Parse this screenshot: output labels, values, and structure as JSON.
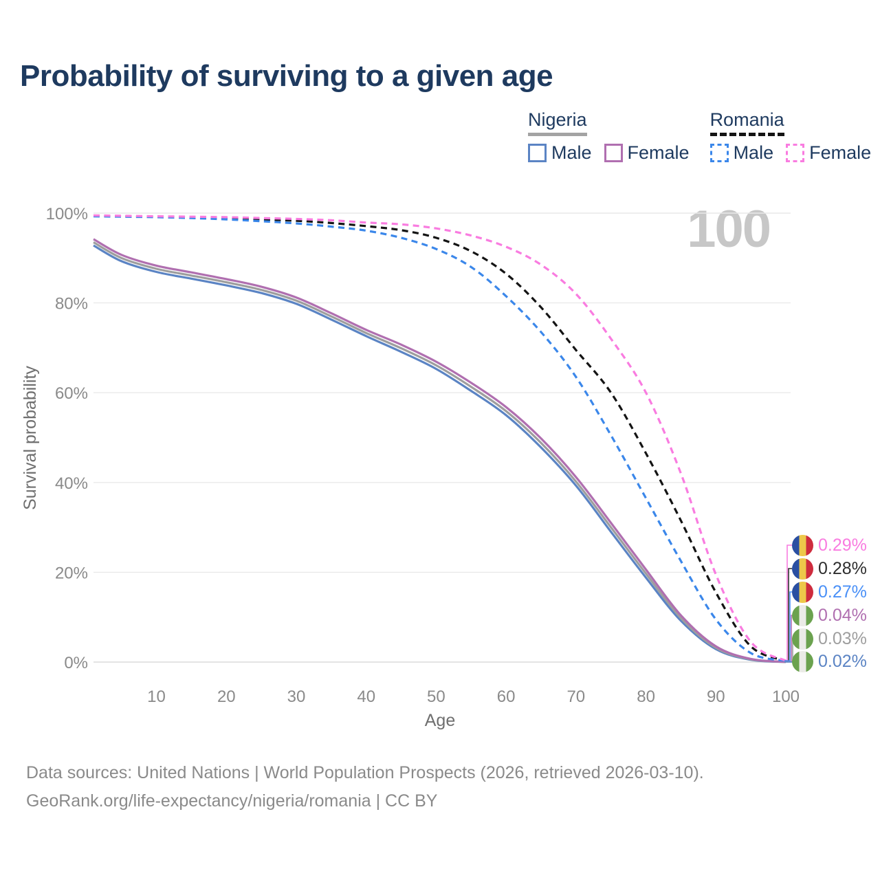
{
  "title": "Probability of surviving to a given age",
  "watermark_age": "100",
  "legend": {
    "groups": [
      {
        "title": "Nigeria",
        "underline": "solid",
        "items": [
          {
            "label": "Male",
            "color": "#5b84c4",
            "style": "solid"
          },
          {
            "label": "Female",
            "color": "#b06fb0",
            "style": "solid"
          }
        ]
      },
      {
        "title": "Romania",
        "underline": "dashed",
        "items": [
          {
            "label": "Male",
            "color": "#3b87ea",
            "style": "dashed"
          },
          {
            "label": "Female",
            "color": "#f97ce0",
            "style": "dashed"
          }
        ]
      }
    ]
  },
  "chart_data": {
    "type": "line",
    "title": "Probability of surviving to a given age",
    "xlabel": "Age",
    "ylabel": "Survival probability",
    "x_ticks": [
      10,
      20,
      30,
      40,
      50,
      60,
      70,
      80,
      90,
      100
    ],
    "y_ticks": [
      "0%",
      "20%",
      "40%",
      "60%",
      "80%",
      "100%"
    ],
    "y_grid_values": [
      0,
      20,
      40,
      60,
      80,
      100
    ],
    "xlim": [
      1,
      100
    ],
    "ylim": [
      0,
      100
    ],
    "grid": true,
    "legend_position": "top-right",
    "x": [
      1,
      5,
      10,
      15,
      20,
      25,
      30,
      35,
      40,
      45,
      50,
      55,
      60,
      65,
      70,
      75,
      80,
      85,
      90,
      95,
      100
    ],
    "series": [
      {
        "name": "Nigeria Male",
        "country": "Nigeria",
        "sex": "Male",
        "style": "solid",
        "color": "#5b84c4",
        "values": [
          92.8,
          89.3,
          86.9,
          85.4,
          83.9,
          82.2,
          79.8,
          76.3,
          72.6,
          69.1,
          65.3,
          60.4,
          55.0,
          47.8,
          39.3,
          29.0,
          18.8,
          9.2,
          2.9,
          0.5,
          0.02
        ]
      },
      {
        "name": "Nigeria Both sexes",
        "country": "Nigeria",
        "sex": "Both",
        "style": "solid",
        "color": "#9e9e9e",
        "values": [
          93.5,
          90.0,
          87.6,
          86.1,
          84.6,
          82.9,
          80.5,
          77.0,
          73.3,
          69.9,
          66.1,
          61.3,
          55.9,
          48.8,
          40.2,
          30.0,
          19.7,
          9.8,
          3.2,
          0.6,
          0.03
        ]
      },
      {
        "name": "Nigeria Female",
        "country": "Nigeria",
        "sex": "Female",
        "style": "solid",
        "color": "#b06fb0",
        "values": [
          94.2,
          90.7,
          88.3,
          86.8,
          85.3,
          83.6,
          81.2,
          77.7,
          74.0,
          70.7,
          66.9,
          62.2,
          56.8,
          49.8,
          41.2,
          31.0,
          20.6,
          10.4,
          3.5,
          0.7,
          0.04
        ]
      },
      {
        "name": "Romania Both sexes",
        "country": "Romania",
        "sex": "Both",
        "style": "dashed",
        "color": "#141414",
        "values": [
          99.4,
          99.3,
          99.2,
          99.1,
          98.9,
          98.6,
          98.3,
          97.8,
          97.1,
          96.2,
          94.5,
          91.5,
          86.5,
          79.0,
          69.5,
          60.0,
          46.5,
          31.5,
          15.5,
          3.5,
          0.28
        ]
      },
      {
        "name": "Romania Male",
        "country": "Romania",
        "sex": "Male",
        "style": "dashed",
        "color": "#3b87ea",
        "values": [
          99.3,
          99.2,
          99.1,
          98.9,
          98.6,
          98.2,
          97.7,
          97.0,
          96.1,
          94.5,
          92.0,
          88.0,
          81.5,
          73.5,
          63.5,
          50.5,
          36.5,
          22.5,
          9.5,
          2.0,
          0.27
        ]
      },
      {
        "name": "Romania Female",
        "country": "Romania",
        "sex": "Female",
        "style": "dashed",
        "color": "#f97ce0",
        "values": [
          99.5,
          99.4,
          99.3,
          99.2,
          99.1,
          98.9,
          98.7,
          98.4,
          97.9,
          97.5,
          96.6,
          95.0,
          92.5,
          88.5,
          82.0,
          72.0,
          60.0,
          42.0,
          19.5,
          4.5,
          0.29
        ]
      }
    ],
    "end_labels": [
      {
        "value": "0.29%",
        "series": "Romania Female",
        "flag": "romania",
        "color": "#f97ce0"
      },
      {
        "value": "0.28%",
        "series": "Romania Both sexes",
        "flag": "romania",
        "color": "#2e2e2e"
      },
      {
        "value": "0.27%",
        "series": "Romania Male",
        "flag": "romania",
        "color": "#4a90f7"
      },
      {
        "value": "0.04%",
        "series": "Nigeria Female",
        "flag": "nigeria",
        "color": "#b06fb0"
      },
      {
        "value": "0.03%",
        "series": "Nigeria Both sexes",
        "flag": "nigeria",
        "color": "#9e9e9e"
      },
      {
        "value": "0.02%",
        "series": "Nigeria Male",
        "flag": "nigeria",
        "color": "#5b84c4"
      }
    ]
  },
  "footer": {
    "line1": "Data sources: United Nations | World Population Prospects (2026, retrieved 2026-03-10).",
    "line2": "GeoRank.org/life-expectancy/nigeria/romania | CC BY"
  }
}
